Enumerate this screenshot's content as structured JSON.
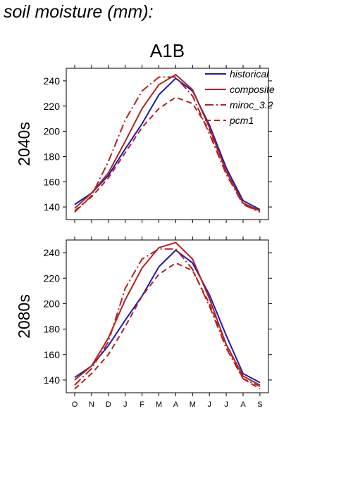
{
  "page_title": "soil moisture (mm):",
  "chart_data": {
    "type": "line",
    "title": "A1B",
    "categories": [
      "O",
      "N",
      "D",
      "J",
      "F",
      "M",
      "A",
      "M",
      "J",
      "J",
      "A",
      "S"
    ],
    "ylim": [
      130,
      250
    ],
    "yticks": [
      140,
      160,
      180,
      200,
      220,
      240
    ],
    "grid": false,
    "legend_position": "top-right",
    "legend_panel": 0,
    "panels": [
      {
        "label": "2040s",
        "series": [
          {
            "name": "historical",
            "color": "#1c1ca8",
            "dash": "solid",
            "values": [
              142,
              151,
              165,
              186,
              206,
              229,
              242,
              232,
              205,
              171,
              145,
              138
            ]
          },
          {
            "name": "composite",
            "color": "#b22222",
            "dash": "solid",
            "values": [
              139,
              151,
              167,
              192,
              218,
              237,
              245,
              233,
              203,
              168,
              143,
              137
            ]
          },
          {
            "name": "miroc_3.2",
            "color": "#b22222",
            "dash": "dashdot",
            "values": [
              136,
              149,
              176,
              209,
              232,
              243,
              243,
              228,
              198,
              166,
              142,
              136
            ]
          },
          {
            "name": "pcm1",
            "color": "#b22222",
            "dash": "dashed",
            "values": [
              137,
              148,
              163,
              183,
              203,
              218,
              227,
              222,
              201,
              169,
              143,
              136
            ]
          }
        ]
      },
      {
        "label": "2080s",
        "series": [
          {
            "name": "historical",
            "color": "#1c1ca8",
            "dash": "solid",
            "values": [
              142,
              151,
              167,
              187,
              206,
              229,
              242,
              232,
              207,
              175,
              145,
              138
            ]
          },
          {
            "name": "composite",
            "color": "#b22222",
            "dash": "solid",
            "values": [
              140,
              151,
              173,
              203,
              228,
              244,
              248,
              235,
              204,
              168,
              143,
              136
            ]
          },
          {
            "name": "miroc_3.2",
            "color": "#b22222",
            "dash": "dashdot",
            "values": [
              136,
              149,
              170,
              212,
              235,
              243,
              243,
              227,
              198,
              165,
              141,
              135
            ]
          },
          {
            "name": "pcm1",
            "color": "#b22222",
            "dash": "dashed",
            "values": [
              133,
              145,
              160,
              182,
              206,
              223,
              232,
              226,
              200,
              168,
              141,
              133
            ]
          }
        ]
      }
    ]
  }
}
